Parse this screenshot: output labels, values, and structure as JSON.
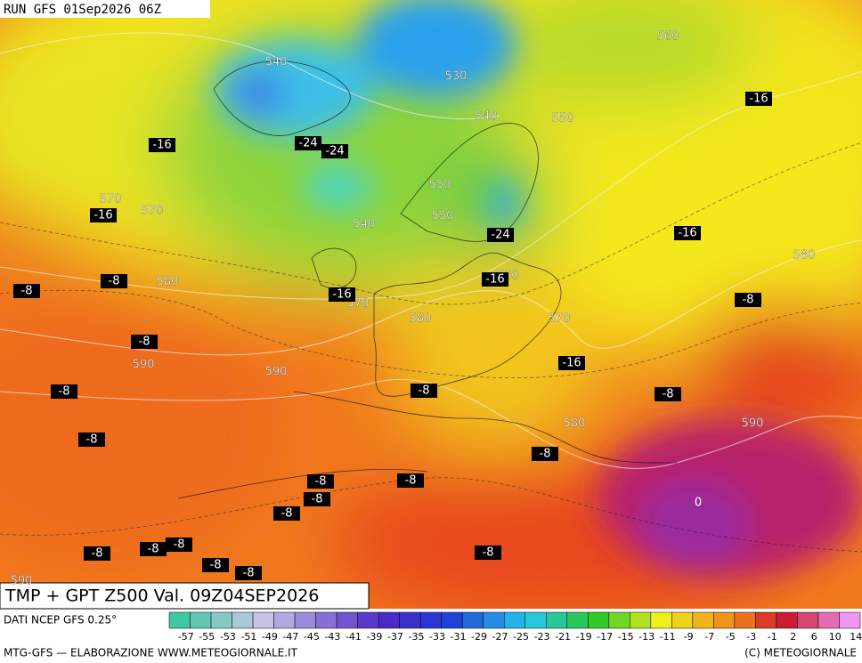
{
  "header": {
    "run": "RUN GFS 01Sep2026 06Z"
  },
  "map": {
    "geopotential_labels": [
      540,
      530,
      560,
      540,
      550,
      570,
      570,
      550,
      550,
      540,
      580,
      580,
      560,
      570,
      580,
      570,
      590,
      590,
      580,
      590,
      590
    ],
    "temperature_labels": [
      -16,
      -16,
      -24,
      -24,
      -16,
      -24,
      -16,
      -8,
      -8,
      -16,
      -16,
      -8,
      -8,
      -16,
      -8,
      -8,
      -8,
      -8,
      -8,
      -8,
      -8,
      -8,
      -8,
      -8,
      -8,
      -8,
      -8,
      -8,
      -8,
      0
    ]
  },
  "caption": "TMP + GPT Z500 Val. 09Z04SEP2026",
  "source": "DATI NCEP GFS 0.25°",
  "legend": {
    "ticks": [
      -57,
      -55,
      -53,
      -51,
      -49,
      -47,
      -45,
      -43,
      -41,
      -39,
      -37,
      -35,
      -33,
      -31,
      -29,
      -27,
      -25,
      -23,
      -21,
      -19,
      -17,
      -15,
      -13,
      -11,
      -9,
      -7,
      -5,
      -3,
      -1,
      2,
      6,
      10,
      14
    ]
  },
  "footer": {
    "left": "MTG-GFS — ELABORAZIONE WWW.METEOGIORNALE.IT",
    "right": "(C) METEOGIORNALE"
  }
}
